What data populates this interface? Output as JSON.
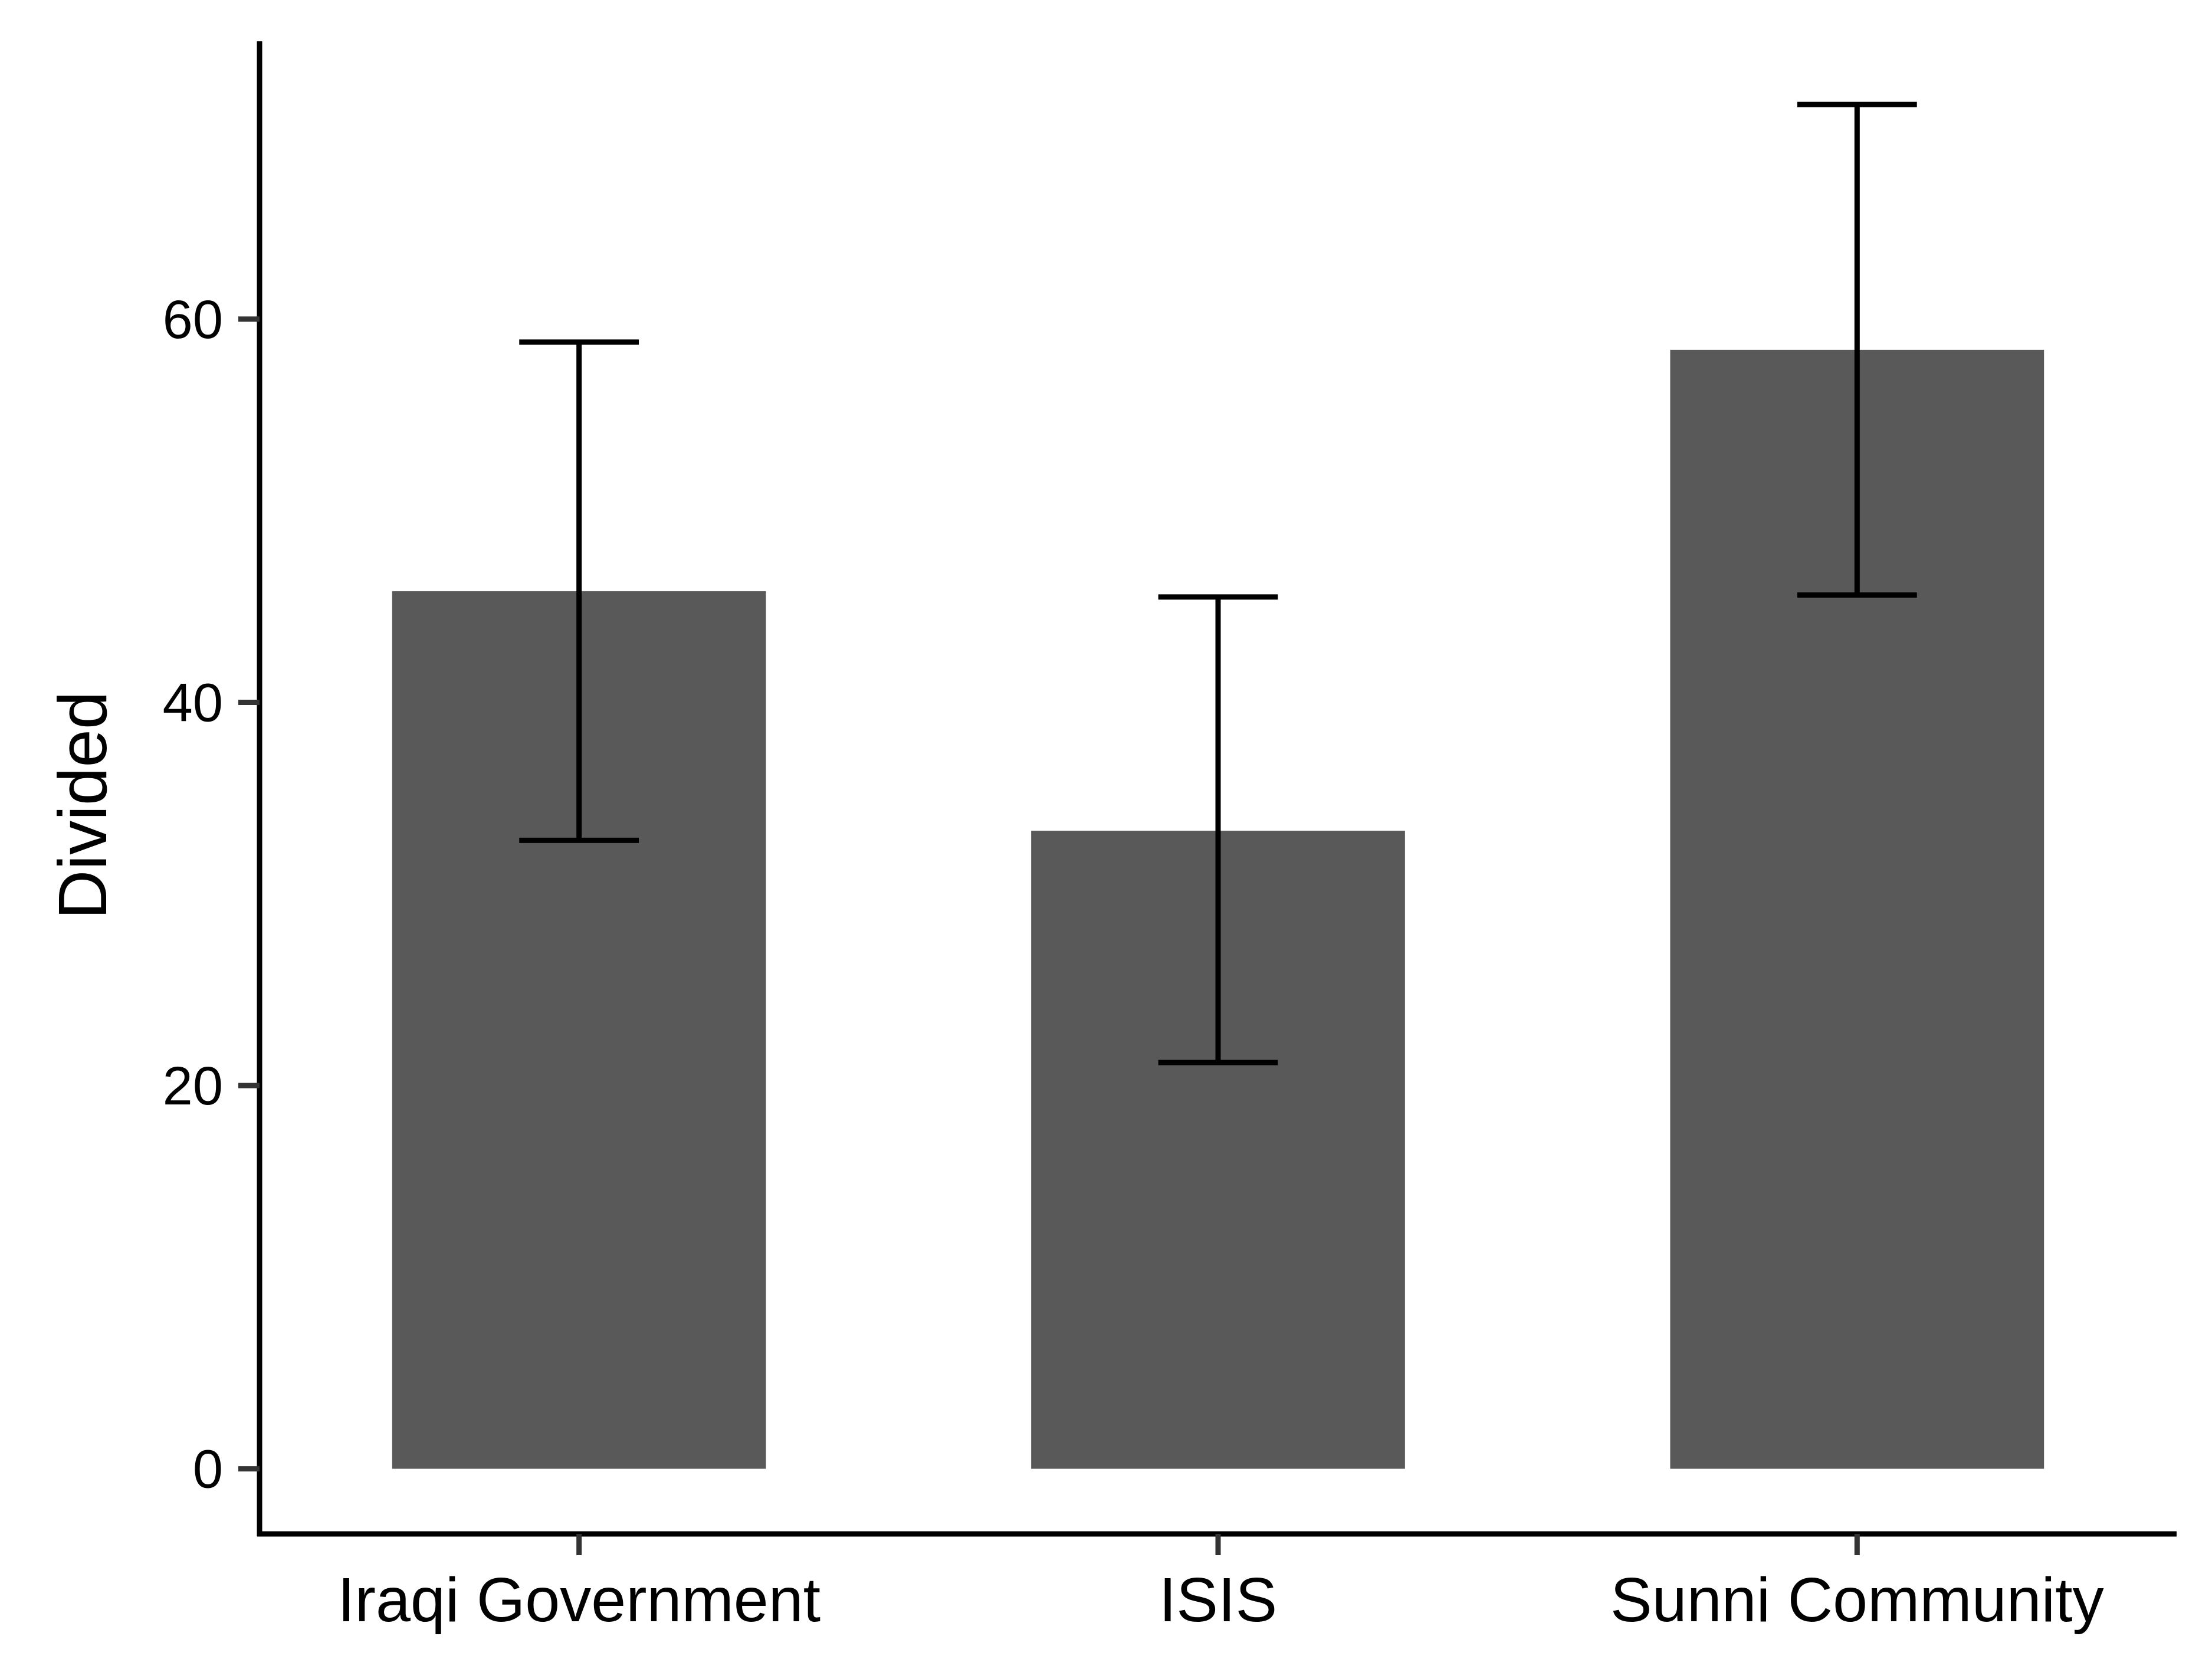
{
  "chart_data": {
    "type": "bar",
    "categories": [
      "Iraqi Government",
      "ISIS",
      "Sunni Community"
    ],
    "values": [
      45.8,
      33.3,
      58.4
    ],
    "error_bars": {
      "lower": [
        32.8,
        21.2,
        45.6
      ],
      "upper": [
        58.8,
        45.5,
        71.2
      ]
    },
    "title": "",
    "xlabel": "",
    "ylabel": "Divided",
    "ylim": [
      -3.4,
      74.5
    ],
    "yticks": [
      0,
      20,
      40,
      60
    ],
    "grid": false,
    "legend": "none",
    "bar_color": "#595959",
    "axis_color": "#000000"
  }
}
